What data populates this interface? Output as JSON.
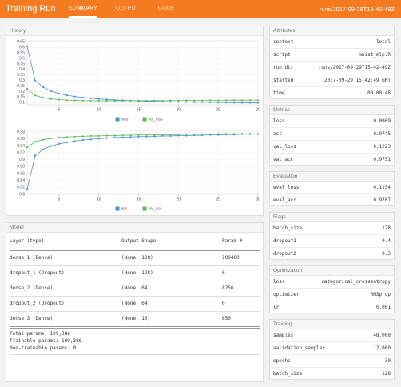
{
  "header": {
    "title": "Training Run",
    "tabs": [
      "SUMMARY",
      "OUTPUT",
      "CODE"
    ],
    "run": "runs/2017-09-29T15-42-49Z"
  },
  "history_title": "History",
  "chart_data": [
    {
      "type": "line",
      "x": [
        1,
        2,
        3,
        4,
        5,
        6,
        7,
        8,
        9,
        10,
        11,
        12,
        13,
        14,
        15,
        16,
        17,
        18,
        19,
        20,
        21,
        22,
        23,
        24,
        25,
        26,
        27,
        28,
        29,
        30
      ],
      "series": [
        {
          "name": "loss",
          "color": "#4c8fd6",
          "values": [
            0.61,
            0.3,
            0.24,
            0.205,
            0.182,
            0.166,
            0.155,
            0.146,
            0.139,
            0.133,
            0.128,
            0.124,
            0.121,
            0.118,
            0.115,
            0.113,
            0.111,
            0.109,
            0.107,
            0.106,
            0.105,
            0.104,
            0.103,
            0.102,
            0.101,
            0.1,
            0.099,
            0.098,
            0.0975,
            0.0969
          ]
        },
        {
          "name": "val_loss",
          "color": "#5cb85c",
          "values": [
            0.225,
            0.165,
            0.145,
            0.133,
            0.127,
            0.122,
            0.12,
            0.118,
            0.117,
            0.116,
            0.116,
            0.117,
            0.116,
            0.117,
            0.118,
            0.117,
            0.118,
            0.117,
            0.119,
            0.118,
            0.12,
            0.119,
            0.12,
            0.121,
            0.12,
            0.121,
            0.122,
            0.121,
            0.122,
            0.1223
          ]
        }
      ],
      "xlim": [
        1,
        30
      ],
      "xticks": [
        5,
        10,
        15,
        20,
        25,
        30
      ],
      "ylim": [
        0.08,
        0.66
      ],
      "yticks": [
        0.1,
        0.15,
        0.2,
        0.25,
        0.3,
        0.35,
        0.4,
        0.45,
        0.5,
        0.55,
        0.6,
        0.65
      ],
      "grid": true,
      "legend": "bottom"
    },
    {
      "type": "line",
      "x": [
        1,
        2,
        3,
        4,
        5,
        6,
        7,
        8,
        9,
        10,
        11,
        12,
        13,
        14,
        15,
        16,
        17,
        18,
        19,
        20,
        21,
        22,
        23,
        24,
        25,
        26,
        27,
        28,
        29,
        30
      ],
      "series": [
        {
          "name": "acc",
          "color": "#4c8fd6",
          "values": [
            0.815,
            0.912,
            0.93,
            0.94,
            0.946,
            0.95,
            0.954,
            0.957,
            0.959,
            0.961,
            0.963,
            0.964,
            0.965,
            0.966,
            0.967,
            0.967,
            0.968,
            0.969,
            0.969,
            0.97,
            0.97,
            0.971,
            0.971,
            0.972,
            0.972,
            0.973,
            0.973,
            0.974,
            0.974,
            0.9745
          ]
        },
        {
          "name": "val_acc",
          "color": "#5cb85c",
          "values": [
            0.936,
            0.952,
            0.958,
            0.962,
            0.964,
            0.966,
            0.967,
            0.968,
            0.969,
            0.969,
            0.97,
            0.97,
            0.971,
            0.971,
            0.972,
            0.972,
            0.972,
            0.973,
            0.973,
            0.973,
            0.974,
            0.974,
            0.974,
            0.974,
            0.975,
            0.975,
            0.975,
            0.975,
            0.975,
            0.9751
          ]
        }
      ],
      "xlim": [
        1,
        30
      ],
      "xticks": [
        5,
        10,
        15,
        20,
        25,
        30
      ],
      "ylim": [
        0.8,
        0.985
      ],
      "yticks": [
        0.8,
        0.82,
        0.84,
        0.86,
        0.88,
        0.9,
        0.92,
        0.94,
        0.96,
        0.98
      ],
      "grid": true,
      "legend": "bottom"
    }
  ],
  "model": {
    "title": "Model",
    "columns": [
      "Layer (type)",
      "Output Shape",
      "Param #"
    ],
    "rows": [
      [
        "dense_1 (Dense)",
        "(None, 128)",
        "100480"
      ],
      [
        "dropout_1 (Dropout)",
        "(None, 128)",
        "0"
      ],
      [
        "dense_2 (Dense)",
        "(None, 64)",
        "8256"
      ],
      [
        "dropout_2 (Dropout)",
        "(None, 64)",
        "0"
      ],
      [
        "dense_3 (Dense)",
        "(None, 10)",
        "650"
      ]
    ],
    "footer": [
      "Total params: 109,386",
      "Trainable params: 109,386",
      "Non-trainable params: 0"
    ]
  },
  "sidebar": [
    {
      "title": "Attributes",
      "rows": [
        [
          "context",
          "local"
        ],
        [
          "script",
          "mnist_mlp.R"
        ],
        [
          "run_dir",
          "runs/2017-09-29T15-42-49Z"
        ],
        [
          "started",
          "2017-09-29 15:42:49 GMT"
        ],
        [
          "time",
          "00:00:48"
        ]
      ]
    },
    {
      "title": "Metrics",
      "rows": [
        [
          "loss",
          "0.0969"
        ],
        [
          "acc",
          "0.9745"
        ],
        [
          "val_loss",
          "0.1223"
        ],
        [
          "val_acc",
          "0.9751"
        ]
      ]
    },
    {
      "title": "Evaluation",
      "rows": [
        [
          "eval_loss",
          "0.1154"
        ],
        [
          "eval_acc",
          "0.9767"
        ]
      ]
    },
    {
      "title": "Flags",
      "rows": [
        [
          "batch_size",
          "128"
        ],
        [
          "dropout1",
          "0.4"
        ],
        [
          "dropout2",
          "0.3"
        ]
      ]
    },
    {
      "title": "Optimization",
      "rows": [
        [
          "loss",
          "categorical_crossentropy"
        ],
        [
          "optimizer",
          "RMSprop"
        ],
        [
          "lr",
          "0.001"
        ]
      ]
    },
    {
      "title": "Training",
      "rows": [
        [
          "samples",
          "48,000"
        ],
        [
          "validation_samples",
          "12,000"
        ],
        [
          "epochs",
          "30"
        ],
        [
          "batch_size",
          "128"
        ]
      ]
    }
  ]
}
